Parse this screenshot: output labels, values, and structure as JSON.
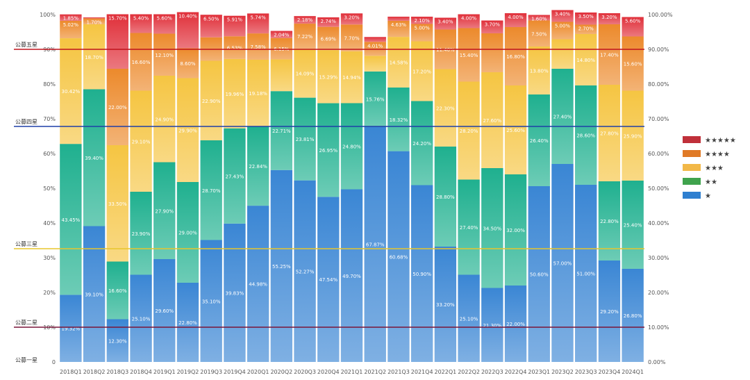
{
  "chart_data": {
    "type": "bar",
    "stacked": true,
    "title": "",
    "xlabel": "",
    "ylabel": "",
    "ylim": [
      0,
      100
    ],
    "left_ticks": [
      "0",
      "10%",
      "20%",
      "30%",
      "40%",
      "50%",
      "60%",
      "70%",
      "80%",
      "90%",
      "100%"
    ],
    "right_ticks": [
      "0.00%",
      "10.00%",
      "20.00%",
      "30.00%",
      "40.00%",
      "50.00%",
      "60.00%",
      "70.00%",
      "80.00%",
      "90.00%",
      "100.00%"
    ],
    "categories": [
      "2018Q1",
      "2018Q2",
      "2018Q3",
      "2018Q4",
      "2019Q1",
      "2019Q2",
      "2019Q3",
      "2019Q4",
      "2020Q1",
      "2020Q2",
      "2020Q3",
      "2020Q4",
      "2021Q1",
      "2021Q2",
      "2021Q3",
      "2021Q4",
      "2022Q1",
      "2022Q2",
      "2022Q3",
      "2022Q4",
      "2023Q1",
      "2023Q2",
      "2023Q3",
      "2023Q4",
      "2024Q1"
    ],
    "series": [
      {
        "name": "★",
        "color": "#3a86d4",
        "values": [
          19.32,
          39.1,
          12.3,
          25.1,
          29.6,
          22.8,
          35.1,
          39.83,
          44.98,
          55.25,
          52.27,
          47.54,
          49.7,
          67.87,
          60.68,
          50.9,
          33.2,
          25.1,
          21.3,
          22.0,
          50.6,
          57.0,
          51.0,
          29.2,
          26.8
        ],
        "labels": [
          "19.32%",
          "39.10%",
          "12.30%",
          "25.10%",
          "29.60%",
          "22.80%",
          "35.10%",
          "39.83%",
          "44.98%",
          "55.25%",
          "52.27%",
          "47.54%",
          "49.70%",
          "67.87%",
          "60.68%",
          "50.90%",
          "33.20%",
          "25.10%",
          "21.30%",
          "22.00%",
          "50.60%",
          "57.00%",
          "51.00%",
          "29.20%",
          "26.80%"
        ]
      },
      {
        "name": "★★",
        "color": "#1fb08f",
        "values": [
          43.45,
          39.4,
          16.6,
          23.9,
          27.9,
          29.0,
          28.7,
          27.43,
          22.84,
          22.71,
          23.81,
          26.95,
          24.8,
          15.76,
          18.32,
          24.2,
          28.8,
          27.4,
          34.5,
          32.0,
          26.4,
          27.4,
          28.6,
          22.8,
          25.4
        ],
        "labels": [
          "43.45%",
          "39.40%",
          "16.60%",
          "23.90%",
          "27.90%",
          "29.00%",
          "28.70%",
          "27.43%",
          "22.84%",
          "22.71%",
          "23.81%",
          "26.95%",
          "24.80%",
          "15.76%",
          "18.32%",
          "24.20%",
          "28.80%",
          "27.40%",
          "34.50%",
          "32.00%",
          "26.40%",
          "27.40%",
          "28.60%",
          "22.80%",
          "25.40%"
        ]
      },
      {
        "name": "★★★",
        "color": "#f5c542",
        "values": [
          30.42,
          18.7,
          33.5,
          29.1,
          24.9,
          29.9,
          22.9,
          19.96,
          19.18,
          9.15,
          14.09,
          15.29,
          14.94,
          4.51,
          14.58,
          17.2,
          22.3,
          28.2,
          27.6,
          25.6,
          13.8,
          8.5,
          14.8,
          27.8,
          25.9
        ],
        "labels": [
          "30.42%",
          "18.70%",
          "33.50%",
          "29.10%",
          "24.90%",
          "29.90%",
          "22.90%",
          "19.96%",
          "19.18%",
          "",
          "14.09%",
          "15.29%",
          "14.94%",
          "",
          "14.58%",
          "17.20%",
          "22.30%",
          "28.20%",
          "27.60%",
          "25.60%",
          "13.80%",
          "",
          "14.80%",
          "27.80%",
          "25.90%"
        ]
      },
      {
        "name": "★★★★",
        "color": "#ec8a2c",
        "values": [
          5.02,
          1.7,
          22.0,
          16.6,
          12.1,
          8.6,
          6.75,
          6.53,
          7.58,
          6.15,
          7.22,
          6.69,
          7.7,
          4.01,
          4.63,
          5.0,
          11.4,
          15.4,
          11.2,
          16.8,
          7.5,
          5.0,
          2.7,
          17.4,
          15.6
        ],
        "labels": [
          "5.02%",
          "1.70%",
          "22.00%",
          "16.60%",
          "12.10%",
          "8.60%",
          "",
          "6.53%",
          "7.58%",
          "6.15%",
          "7.22%",
          "6.69%",
          "7.70%",
          "4.01%",
          "4.63%",
          "5.00%",
          "11.40%",
          "15.40%",
          "",
          "16.80%",
          "7.50%",
          "5.00%",
          "2.70%",
          "17.40%",
          "15.60%"
        ]
      },
      {
        "name": "★★★★★",
        "color": "#e0303a",
        "values": [
          1.85,
          0.3,
          15.7,
          5.4,
          5.6,
          10.4,
          6.5,
          5.91,
          5.74,
          2.04,
          2.18,
          2.74,
          3.2,
          1.4,
          1.19,
          2.1,
          3.4,
          4.0,
          3.7,
          4.0,
          1.6,
          3.4,
          3.5,
          3.2,
          5.6
        ],
        "labels": [
          "1.85%",
          "",
          "15.70%",
          "5.40%",
          "5.60%",
          "10.40%",
          "6.50%",
          "5.91%",
          "5.74%",
          "2.04%",
          "2.18%",
          "2.74%",
          "3.20%",
          "1.40%",
          "1.19%",
          "2.10%",
          "3.40%",
          "4.00%",
          "3.70%",
          "4.00%",
          "1.60%",
          "3.40%",
          "3.50%",
          "3.20%",
          "5.60%"
        ]
      }
    ],
    "reference_lines": [
      {
        "label": "公募五星",
        "value": 90,
        "color": "#c0121c"
      },
      {
        "label": "公募四星",
        "value": 67.8,
        "color": "#1f3fa8"
      },
      {
        "label": "公募三星",
        "value": 32.6,
        "color": "#e8c62c"
      },
      {
        "label": "公募二星",
        "value": 10,
        "color": "#7a1438"
      },
      {
        "label": "公募一星",
        "value": 0,
        "color": ""
      }
    ],
    "legend": {
      "position": "right",
      "entries": [
        {
          "label": "★★★★★",
          "color": "#c0303a"
        },
        {
          "label": "★★★★",
          "color": "#e07a26"
        },
        {
          "label": "★★★",
          "color": "#f2b848"
        },
        {
          "label": "★★",
          "color": "#3fa34d"
        },
        {
          "label": "★",
          "color": "#2e7fd0"
        }
      ]
    }
  }
}
